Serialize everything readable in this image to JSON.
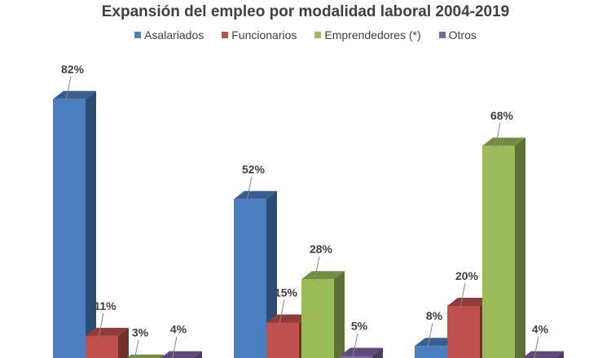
{
  "chart_data": {
    "type": "bar",
    "style": "3d-clustered-column",
    "title": "Expansión del empleo por modalidad laboral 2004-2019",
    "xlabel": "",
    "ylabel": "",
    "ylim": [
      0,
      90
    ],
    "grid": false,
    "legend_position": "top",
    "groups": 3,
    "series": [
      {
        "name": "Asalariados",
        "color": "#4a7ebf",
        "values": [
          82,
          52,
          8
        ],
        "labels": [
          "82%",
          "52%",
          "8%"
        ]
      },
      {
        "name": "Funcionarios",
        "color": "#c0504d",
        "values": [
          11,
          15,
          20
        ],
        "labels": [
          "11%",
          "15%",
          "20%"
        ]
      },
      {
        "name": "Emprendedores (*)",
        "color": "#9bbb59",
        "values": [
          3,
          28,
          68
        ],
        "labels": [
          "3%",
          "28%",
          "68%"
        ]
      },
      {
        "name": "Otros",
        "color": "#7f64a2",
        "values": [
          4,
          5,
          4
        ],
        "labels": [
          "4%",
          "5%",
          "4%"
        ]
      }
    ]
  }
}
